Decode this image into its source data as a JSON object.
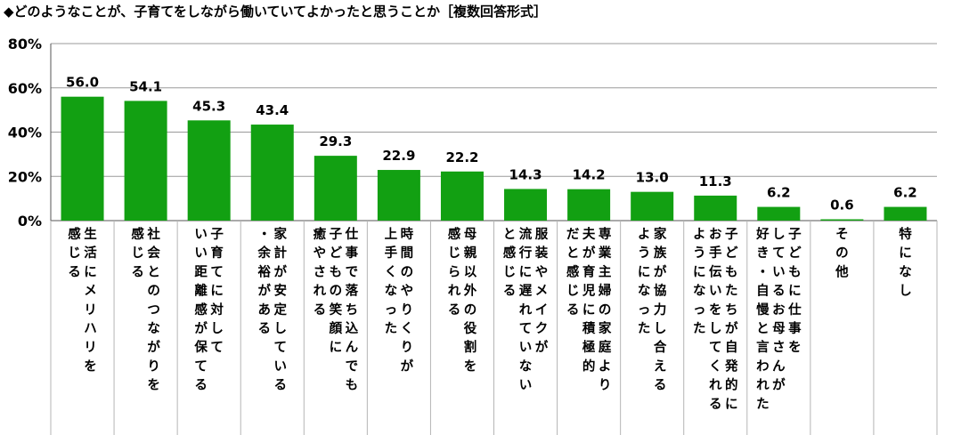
{
  "title": "◆どのようなことが、子育てをしながら働いていてよかったと思うことか［複数回答形式］",
  "chart_data": {
    "type": "bar",
    "title": "◆どのようなことが、子育てをしながら働いていてよかったと思うことか［複数回答形式］",
    "ylim": [
      0,
      80
    ],
    "yticks": [
      "0%",
      "20%",
      "40%",
      "60%",
      "80%"
    ],
    "grid": true,
    "bar_color": "#12A012",
    "categories": [
      [
        "生活にメリハリを",
        "感じる"
      ],
      [
        "社会とのつながりを",
        "感じる"
      ],
      [
        "子育てに対して",
        "いい距離感が保てる"
      ],
      [
        "家計が安定している",
        "・余裕がある"
      ],
      [
        "仕事で落ち込んでも",
        "子どもの笑顔に",
        "癒やされる"
      ],
      [
        "時間のやりくりが",
        "上手くなった"
      ],
      [
        "母親以外の役割を",
        "感じられる"
      ],
      [
        "服装やメイクが",
        "流行に遅れていない",
        "と感じる"
      ],
      [
        "専業主婦の家庭より",
        "夫が育児に積極的",
        "だと感じる"
      ],
      [
        "家族が協力し合える",
        "ようになった"
      ],
      [
        "子どもたちが自発的に",
        "お手伝いをしてくれる",
        "ようになった"
      ],
      [
        "子どもに仕事を",
        "しているお母さんが",
        "好き・自慢と言われた"
      ],
      [
        "その他"
      ],
      [
        "特になし"
      ]
    ],
    "values": [
      56.0,
      54.1,
      45.3,
      43.4,
      29.3,
      22.9,
      22.2,
      14.3,
      14.2,
      13.0,
      11.3,
      6.2,
      0.6,
      6.2
    ],
    "value_labels": [
      "56.0",
      "54.1",
      "45.3",
      "43.4",
      "29.3",
      "22.9",
      "22.2",
      "14.3",
      "14.2",
      "13.0",
      "11.3",
      "6.2",
      "0.6",
      "6.2"
    ]
  }
}
